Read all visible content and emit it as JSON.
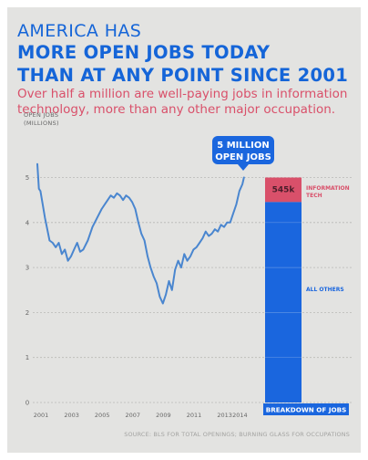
{
  "header": {
    "eyebrow": "AMERICA HAS",
    "headline_line1": "MORE OPEN JOBS TODAY",
    "headline_line2": "THAN AT ANY POINT SINCE 2001",
    "subtitle": "Over half a million are well-paying jobs in information technology, more than any other major occupation."
  },
  "callout": {
    "line1": "5 MILLION",
    "line2": "OPEN JOBS"
  },
  "source": "SOURCE: BLS FOR TOTAL OPENINGS; BURNING GLASS FOR OCCUPATIONS",
  "colors": {
    "line": "#4a86cf",
    "bar_blue": "#1a66de",
    "bar_pink": "#d9506a",
    "axis_text": "#666666"
  },
  "chart_data": [
    {
      "type": "line",
      "ylabel_line1": "OPEN JOBS",
      "ylabel_line2": "(MILLIONS)",
      "ylim": [
        0,
        5.5
      ],
      "yticks": [
        "0",
        "1",
        "2",
        "3",
        "4",
        "5"
      ],
      "xlim": [
        2001,
        2014.6
      ],
      "xticks": [
        "2001",
        "2003",
        "2005",
        "2007",
        "2009",
        "2011",
        "2013",
        "2014"
      ],
      "xtick_values": [
        2001,
        2003,
        2005,
        2007,
        2009,
        2011,
        2013,
        2014
      ],
      "grid": true,
      "series": [
        {
          "x": [
            2001.0,
            2001.1,
            2001.2,
            2001.35,
            2001.5,
            2001.65,
            2001.8,
            2002.0,
            2002.2,
            2002.4,
            2002.6,
            2002.8,
            2003.0,
            2003.2,
            2003.4,
            2003.6,
            2003.8,
            2004.0,
            2004.3,
            2004.6,
            2004.9,
            2005.2,
            2005.5,
            2005.8,
            2006.0,
            2006.2,
            2006.4,
            2006.6,
            2006.8,
            2007.0,
            2007.2,
            2007.4,
            2007.6,
            2007.8,
            2008.0,
            2008.2,
            2008.4,
            2008.6,
            2008.8,
            2009.0,
            2009.2,
            2009.4,
            2009.6,
            2009.8,
            2010.0,
            2010.2,
            2010.4,
            2010.6,
            2010.8,
            2011.0,
            2011.2,
            2011.4,
            2011.6,
            2011.8,
            2012.0,
            2012.2,
            2012.4,
            2012.6,
            2012.8,
            2013.0,
            2013.2,
            2013.4,
            2013.6,
            2013.8,
            2014.0,
            2014.2,
            2014.4,
            2014.5
          ],
          "values": [
            5.3,
            4.75,
            4.7,
            4.4,
            4.1,
            3.85,
            3.6,
            3.55,
            3.45,
            3.55,
            3.3,
            3.4,
            3.15,
            3.25,
            3.4,
            3.55,
            3.35,
            3.4,
            3.6,
            3.9,
            4.1,
            4.3,
            4.45,
            4.6,
            4.55,
            4.65,
            4.6,
            4.5,
            4.6,
            4.55,
            4.45,
            4.3,
            4.0,
            3.75,
            3.6,
            3.25,
            3.0,
            2.8,
            2.65,
            2.35,
            2.2,
            2.4,
            2.7,
            2.5,
            2.95,
            3.15,
            3.0,
            3.3,
            3.15,
            3.25,
            3.4,
            3.45,
            3.55,
            3.65,
            3.8,
            3.7,
            3.75,
            3.85,
            3.8,
            3.95,
            3.9,
            4.0,
            4.0,
            4.2,
            4.4,
            4.7,
            4.85,
            5.0
          ]
        }
      ]
    },
    {
      "type": "bar",
      "stacked": true,
      "category": "BREAKDOWN OF JOBS",
      "total": 5.0,
      "segments": [
        {
          "name": "INFORMATION TECH",
          "value": 0.545,
          "label": "545k"
        },
        {
          "name": "ALL OTHERS",
          "value": 4.455
        }
      ]
    }
  ]
}
